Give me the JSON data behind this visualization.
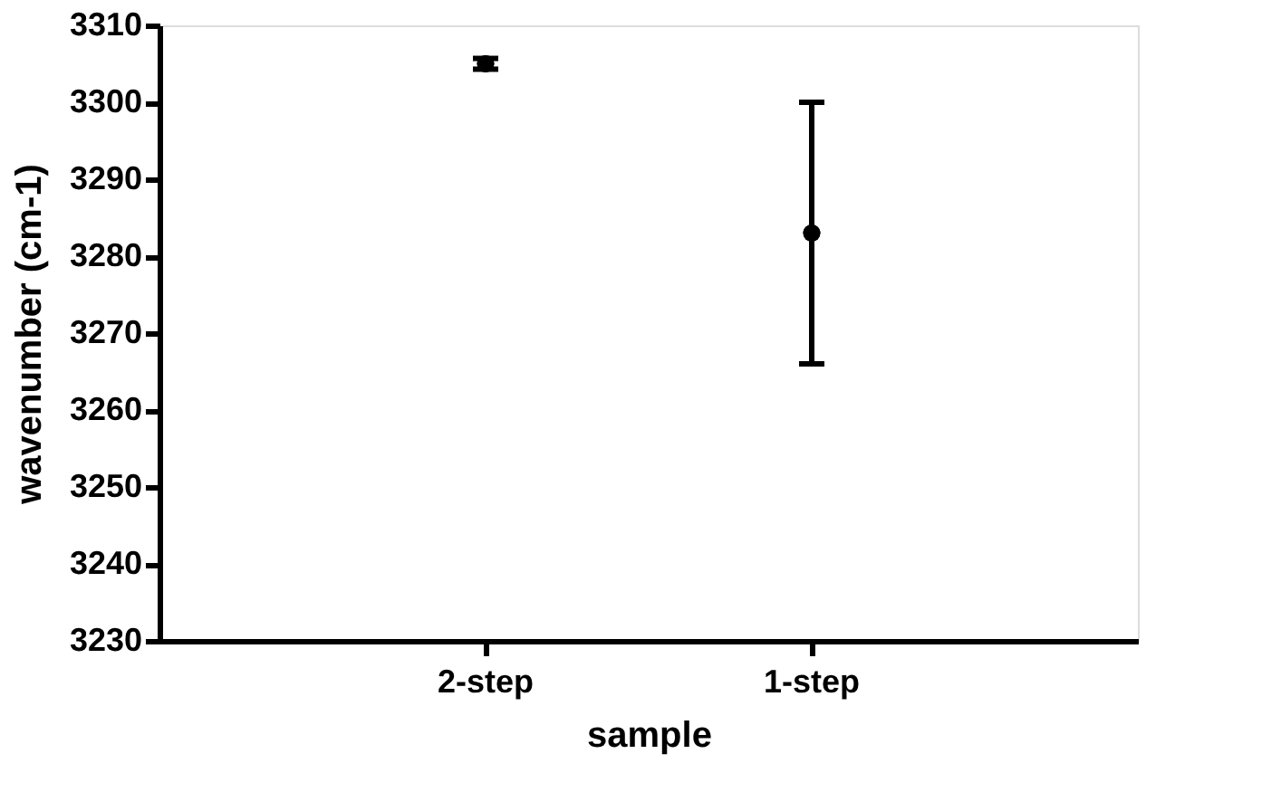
{
  "chart_data": {
    "type": "scatter",
    "xlabel": "sample",
    "ylabel": "wavenumber (cm-1)",
    "categories": [
      "2-step",
      "1-step"
    ],
    "values": [
      3305,
      3283
    ],
    "errors": [
      0.7,
      17
    ],
    "color": "#000000",
    "marker": "circle",
    "ylim": [
      3230,
      3310
    ],
    "yticks": [
      3230,
      3240,
      3250,
      3260,
      3270,
      3280,
      3290,
      3300,
      3310
    ],
    "grid": false
  }
}
